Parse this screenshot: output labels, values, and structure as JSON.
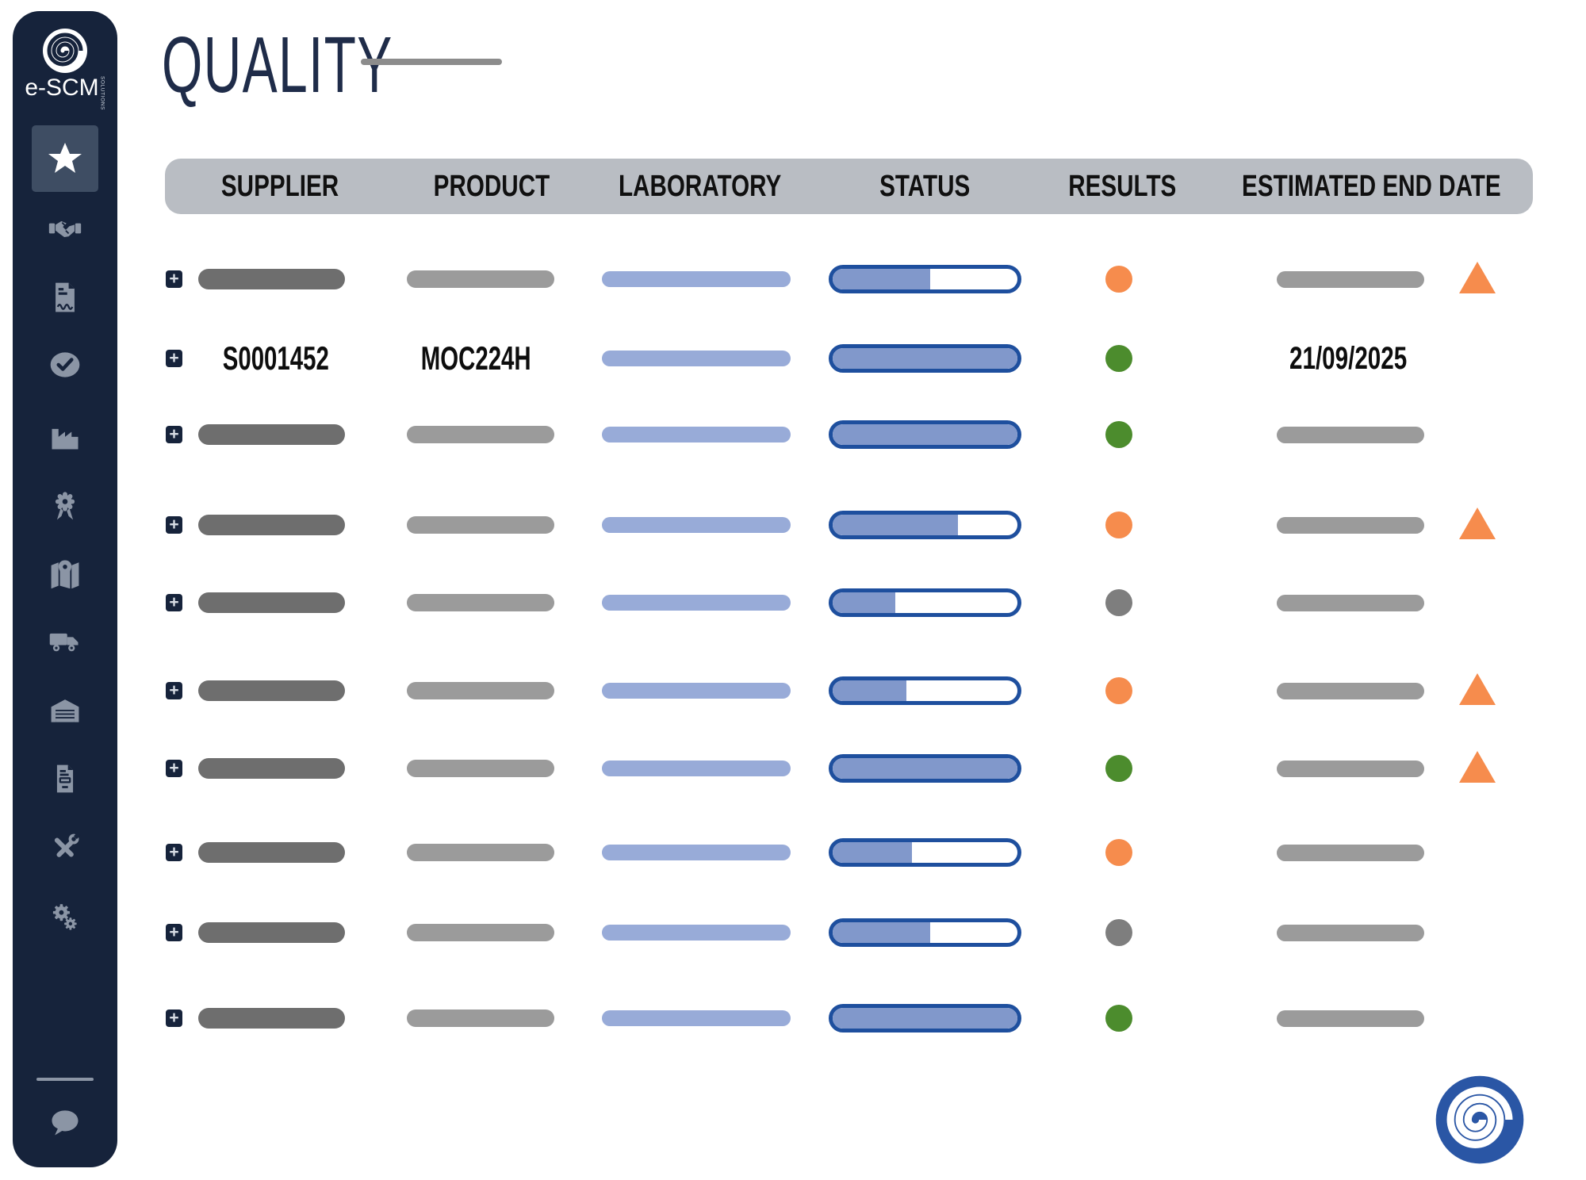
{
  "brand": {
    "name": "e-SCM",
    "sub": "SOLUTIONS"
  },
  "page": {
    "title": "QUALITY"
  },
  "icons": {
    "expand": "+"
  },
  "colors": {
    "sidebar_bg": "#16233B",
    "active_item_bg": "#3E4D63",
    "icon": "#8B95A5",
    "title": "#1F2C49",
    "header_bg": "#B9BDC3",
    "supplier_bar": "#6E6E6E",
    "product_bar": "#9B9B9B",
    "laboratory_bar": "#98ABD8",
    "date_bar": "#9B9B9B",
    "progress_border": "#1E4F9E",
    "progress_fill": "#8198CB",
    "result_orange": "#F68C4D",
    "result_green": "#4C8C2D",
    "result_gray": "#7E7E7E",
    "alert": "#F68C4D",
    "logo_blue": "#2A56A5"
  },
  "sidebar": {
    "items": [
      {
        "id": "favorites",
        "icon": "star-icon",
        "active": true
      },
      {
        "id": "partners",
        "icon": "handshake-icon",
        "active": false
      },
      {
        "id": "contracts",
        "icon": "document-signature-icon",
        "active": false
      },
      {
        "id": "approvals",
        "icon": "check-circle-icon",
        "active": false
      },
      {
        "id": "production",
        "icon": "factory-icon",
        "active": false
      },
      {
        "id": "quality",
        "icon": "award-icon",
        "active": false
      },
      {
        "id": "map",
        "icon": "map-pin-icon",
        "active": false
      },
      {
        "id": "transport",
        "icon": "truck-icon",
        "active": false
      },
      {
        "id": "warehouse",
        "icon": "warehouse-icon",
        "active": false
      },
      {
        "id": "documents",
        "icon": "clipboard-icon",
        "active": false
      },
      {
        "id": "tools",
        "icon": "tools-icon",
        "active": false
      },
      {
        "id": "settings",
        "icon": "gears-icon",
        "active": false
      },
      {
        "id": "chat",
        "icon": "chat-icon",
        "active": false
      }
    ]
  },
  "table": {
    "columns": [
      "SUPPLIER",
      "PRODUCT",
      "LABORATORY",
      "STATUS",
      "RESULTS",
      "ESTIMATED END DATE"
    ],
    "rows": [
      {
        "supplier": "",
        "product": "",
        "laboratory": "",
        "status_pct": 53,
        "result": "orange",
        "end_date": "",
        "alert": true
      },
      {
        "supplier": "S0001452",
        "product": "MOC224H",
        "laboratory": "",
        "status_pct": 100,
        "result": "green",
        "end_date": "21/09/2025",
        "alert": false
      },
      {
        "supplier": "",
        "product": "",
        "laboratory": "",
        "status_pct": 100,
        "result": "green",
        "end_date": "",
        "alert": false
      },
      {
        "supplier": "",
        "product": "",
        "laboratory": "",
        "status_pct": 68,
        "result": "orange",
        "end_date": "",
        "alert": true
      },
      {
        "supplier": "",
        "product": "",
        "laboratory": "",
        "status_pct": 34,
        "result": "gray",
        "end_date": "",
        "alert": false
      },
      {
        "supplier": "",
        "product": "",
        "laboratory": "",
        "status_pct": 40,
        "result": "orange",
        "end_date": "",
        "alert": true
      },
      {
        "supplier": "",
        "product": "",
        "laboratory": "",
        "status_pct": 100,
        "result": "green",
        "end_date": "",
        "alert": true
      },
      {
        "supplier": "",
        "product": "",
        "laboratory": "",
        "status_pct": 43,
        "result": "orange",
        "end_date": "",
        "alert": false
      },
      {
        "supplier": "",
        "product": "",
        "laboratory": "",
        "status_pct": 53,
        "result": "gray",
        "end_date": "",
        "alert": false
      },
      {
        "supplier": "",
        "product": "",
        "laboratory": "",
        "status_pct": 100,
        "result": "green",
        "end_date": "",
        "alert": false
      }
    ]
  }
}
